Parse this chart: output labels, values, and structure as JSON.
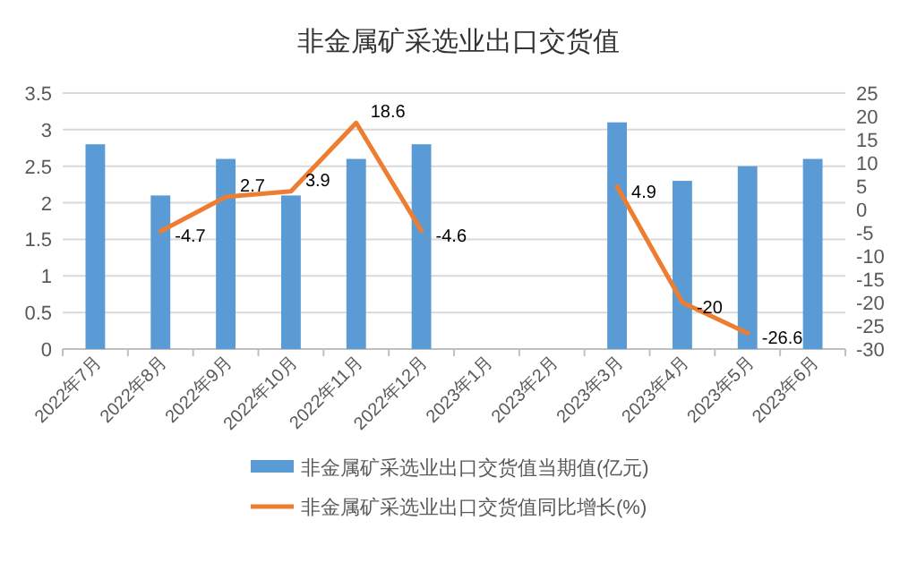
{
  "chart_data": {
    "type": "bar",
    "title": "非金属矿采选业出口交货值",
    "categories": [
      "2022年7月",
      "2022年8月",
      "2022年9月",
      "2022年10月",
      "2022年11月",
      "2022年12月",
      "2023年1月",
      "2023年2月",
      "2023年3月",
      "2023年4月",
      "2023年5月",
      "2023年6月"
    ],
    "series": [
      {
        "name": "非金属矿采选业出口交货值当期值(亿元)",
        "color": "#5b9bd5",
        "values": [
          2.8,
          2.1,
          2.6,
          2.1,
          2.6,
          2.8,
          null,
          null,
          3.1,
          2.3,
          2.5,
          2.6
        ]
      },
      {
        "name": "非金属矿采选业出口交货值同比增长(%)",
        "type": "line",
        "axis": "y2",
        "color": "#ed7d31",
        "data_labels": true,
        "values": [
          null,
          -4.7,
          2.7,
          3.9,
          18.6,
          -4.6,
          null,
          null,
          4.9,
          -20,
          -26.6,
          null
        ]
      }
    ],
    "ylim": [
      0,
      3.5
    ],
    "yticks": [
      0,
      0.5,
      1,
      1.5,
      2,
      2.5,
      3,
      3.5
    ],
    "y2lim": [
      -30,
      25
    ],
    "y2ticks": [
      -30,
      -25,
      -20,
      -15,
      -10,
      -5,
      0,
      5,
      10,
      15,
      20,
      25
    ],
    "grid": "y",
    "legend": "bottom"
  }
}
